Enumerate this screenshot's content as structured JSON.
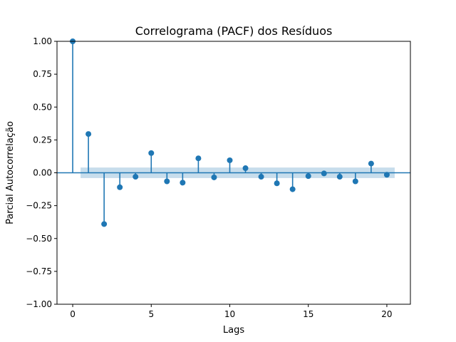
{
  "chart_data": {
    "type": "stem",
    "title": "Correlograma (PACF) dos Resíduos",
    "xlabel": "Lags",
    "ylabel": "Parcial Autocorrelação",
    "xlim": [
      -1,
      21.5
    ],
    "ylim": [
      -1.0,
      1.0
    ],
    "x_ticks": [
      0,
      5,
      10,
      15,
      20
    ],
    "x_tick_labels": [
      "0",
      "5",
      "10",
      "15",
      "20"
    ],
    "y_ticks": [
      1.0,
      0.75,
      0.5,
      0.25,
      0.0,
      -0.25,
      -0.5,
      -0.75,
      -1.0
    ],
    "y_tick_labels": [
      "1.00",
      "0.75",
      "0.50",
      "0.25",
      "0.00",
      "−0.25",
      "−0.50",
      "−0.75",
      "−1.00"
    ],
    "lags": [
      0,
      1,
      2,
      3,
      4,
      5,
      6,
      7,
      8,
      9,
      10,
      11,
      12,
      13,
      14,
      15,
      16,
      17,
      18,
      19,
      20
    ],
    "values": [
      1.0,
      0.295,
      -0.39,
      -0.11,
      -0.03,
      0.15,
      -0.065,
      -0.075,
      0.11,
      -0.035,
      0.095,
      0.035,
      -0.03,
      -0.08,
      -0.125,
      -0.025,
      -0.005,
      -0.03,
      -0.065,
      0.07,
      -0.015
    ],
    "confidence_band": {
      "x_start": 0.5,
      "x_end": 20.5,
      "lower": -0.04,
      "upper": 0.04
    },
    "grid": false,
    "legend": "none",
    "colors": {
      "stem": "#1f77b4",
      "band": "#1f77b4",
      "zero_line": "#1f77b4"
    }
  }
}
